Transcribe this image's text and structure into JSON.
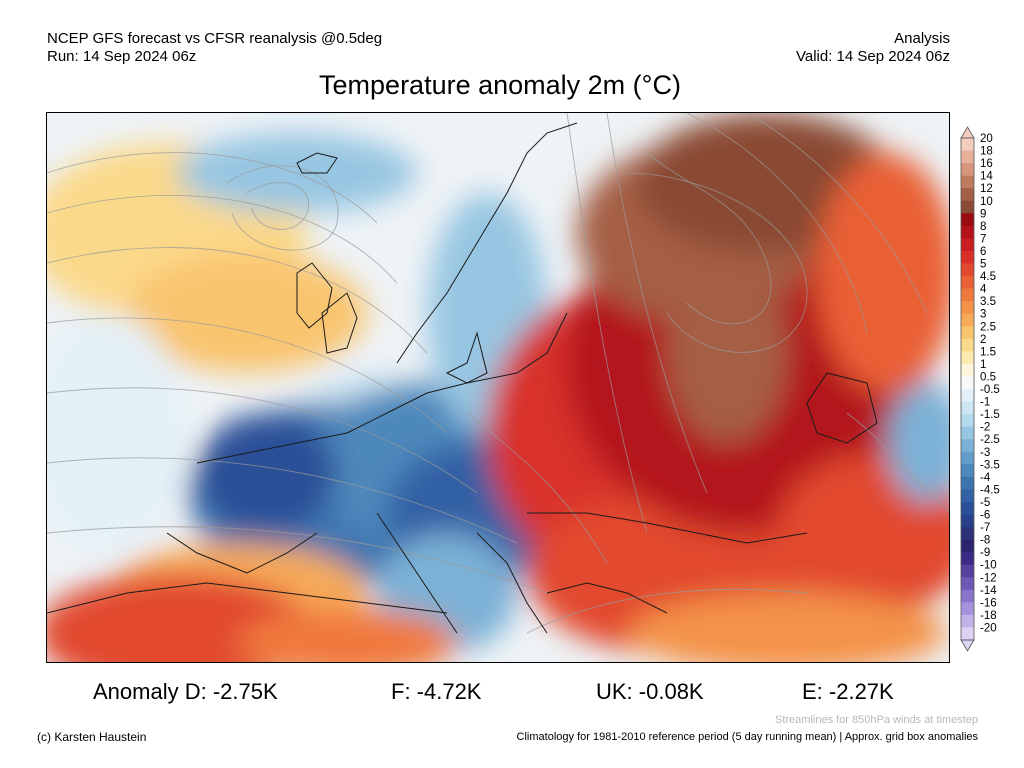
{
  "header": {
    "line1_left": "NCEP GFS forecast vs CFSR reanalysis @0.5deg",
    "line2_left": "Run: 14 Sep 2024 06z",
    "line1_right": "Analysis",
    "line2_right": "Valid: 14 Sep 2024 06z"
  },
  "title": "Temperature anomaly 2m (°C)",
  "colorbar": {
    "labels": [
      "20",
      "18",
      "16",
      "14",
      "12",
      "10",
      "9",
      "8",
      "7",
      "6",
      "5",
      "4.5",
      "4",
      "3.5",
      "3",
      "2.5",
      "2",
      "1.5",
      "1",
      "0.5",
      "-0.5",
      "-1",
      "-1.5",
      "-2",
      "-2.5",
      "-3",
      "-3.5",
      "-4",
      "-4.5",
      "-5",
      "-6",
      "-7",
      "-8",
      "-9",
      "-10",
      "-12",
      "-14",
      "-16",
      "-18",
      "-20"
    ],
    "colors": [
      "#f3cdbd",
      "#e7b19b",
      "#d4957a",
      "#c07a5d",
      "#a55f45",
      "#8a4a33",
      "#9a0c10",
      "#b3131a",
      "#c81e22",
      "#d83029",
      "#e2482f",
      "#ea6036",
      "#f0793d",
      "#f49348",
      "#f7ab58",
      "#f9c46e",
      "#fbd98a",
      "#fceab0",
      "#fdf6dc",
      "#f8f8f8",
      "#e4f1f8",
      "#cde6f3",
      "#b3d9ec",
      "#97c6e2",
      "#7bb1d6",
      "#629dc9",
      "#4d88bc",
      "#3d74b0",
      "#3361a4",
      "#2b4f97",
      "#29408a",
      "#2c317a",
      "#2b2370",
      "#3b2a85",
      "#55409e",
      "#6e58b6",
      "#8a74cb",
      "#a692dc",
      "#c2b2ea",
      "#dcd2f4"
    ]
  },
  "stats": {
    "d": "Anomaly D: -2.75K",
    "f": "F: -4.72K",
    "uk": "UK: -0.08K",
    "e": "E: -2.27K"
  },
  "footer": {
    "streamlines": "Streamlines for 850hPa winds at timestep",
    "copyright": "(c) Karsten Haustein",
    "climatology": "Climatology for 1981-2010 reference period (5 day running mean) | Approx. grid box anomalies"
  }
}
